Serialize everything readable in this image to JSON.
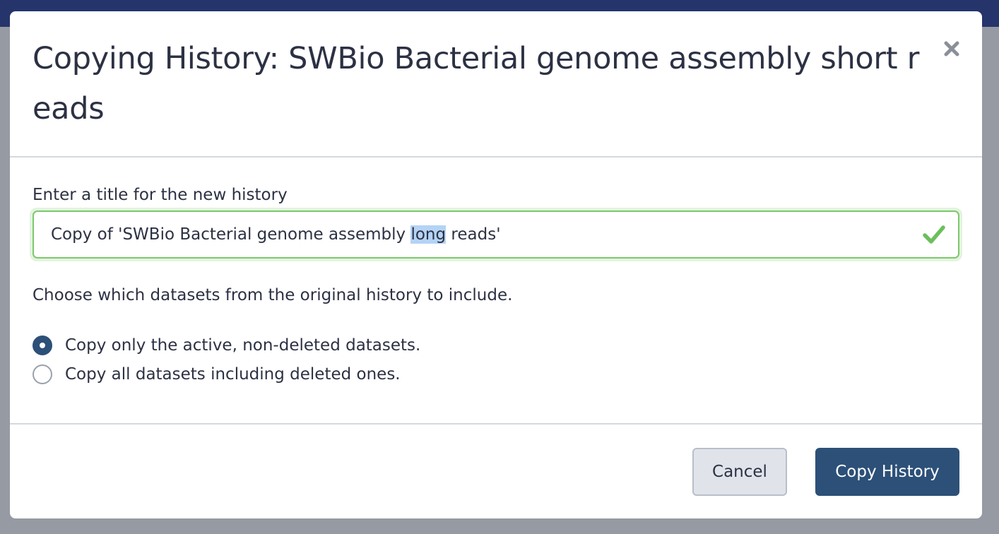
{
  "modal": {
    "title": "Copying History: SWBio Bacterial genome assembly short reads",
    "close_icon": "close-icon"
  },
  "form": {
    "title_label": "Enter a title for the new history",
    "title_value": "Copy of 'SWBio Bacterial genome assembly long reads'",
    "selected_text": "long",
    "valid_icon": "checkmark-icon",
    "choose_label": "Choose which datasets from the original history to include.",
    "options": [
      {
        "label": "Copy only the active, non-deleted datasets.",
        "checked": true
      },
      {
        "label": "Copy all datasets including deleted ones.",
        "checked": false
      }
    ]
  },
  "footer": {
    "cancel_label": "Cancel",
    "submit_label": "Copy History"
  },
  "colors": {
    "top_bar": "#25346b",
    "backdrop": "#959aa3",
    "primary": "#2c5078",
    "valid_border": "#7cc96a",
    "valid_check": "#6cbf5d"
  }
}
